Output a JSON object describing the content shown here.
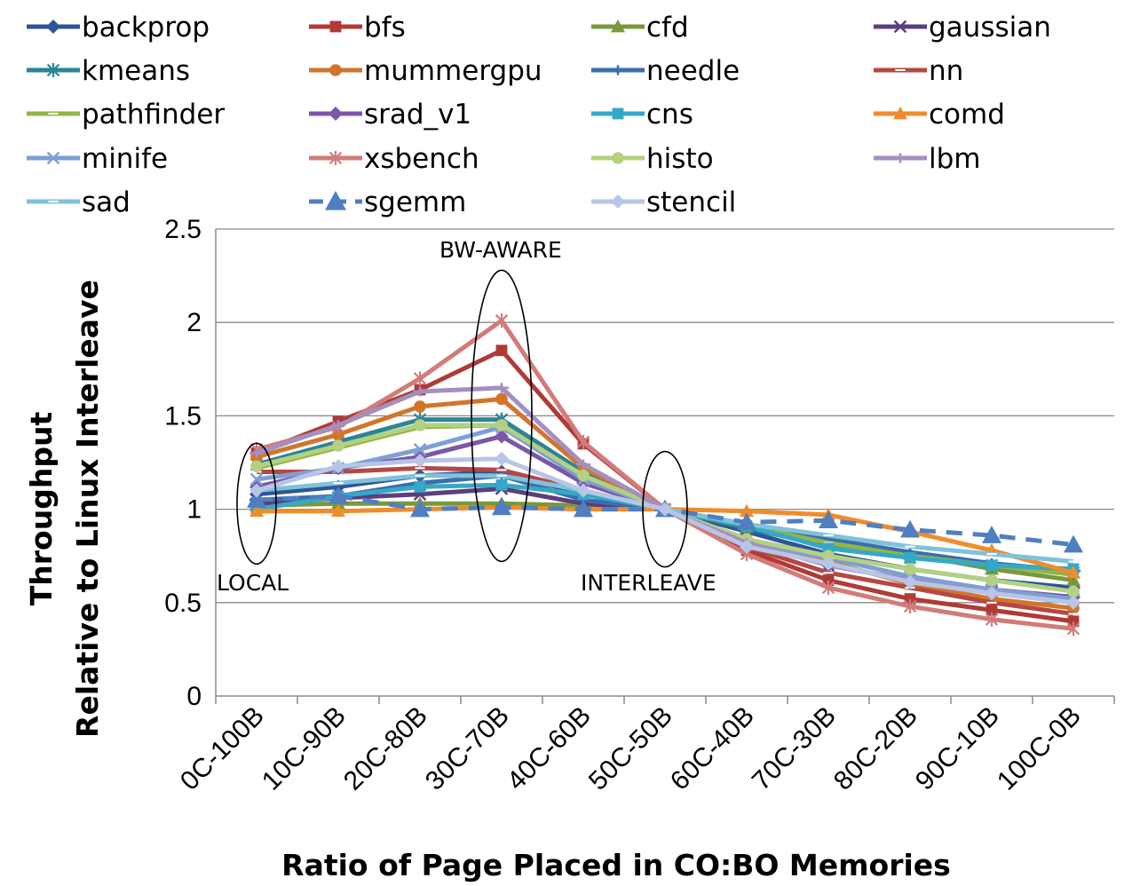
{
  "chart_data": {
    "type": "line",
    "xlabel": "Ratio of Page Placed in CO:BO Memories",
    "ylabel_lines": [
      "Throughput",
      "Relative to Linux Interleave"
    ],
    "ylim": [
      0,
      2.5
    ],
    "yticks": [
      "0",
      "0.5",
      "1",
      "1.5",
      "2",
      "2.5"
    ],
    "grid": "horizontal",
    "legend_position": "top",
    "categories": [
      "0C-100B",
      "10C-90B",
      "20C-80B",
      "30C-70B",
      "40C-60B",
      "50C-50B",
      "60C-40B",
      "70C-30B",
      "80C-20B",
      "90C-10B",
      "100C-0B"
    ],
    "annotations": [
      {
        "text": "LOCAL",
        "category": "0C-100B"
      },
      {
        "text": "BW-AWARE",
        "category": "30C-70B"
      },
      {
        "text": "INTERLEAVE",
        "category": "50C-50B"
      }
    ],
    "series": [
      {
        "name": "backprop",
        "color": "#2e5597",
        "marker": "diamond",
        "dashed": false,
        "values": [
          1.08,
          1.12,
          1.18,
          1.2,
          1.08,
          1.0,
          0.88,
          0.76,
          0.68,
          0.62,
          0.58
        ]
      },
      {
        "name": "bfs",
        "color": "#b03a36",
        "marker": "square",
        "dashed": false,
        "values": [
          1.3,
          1.47,
          1.64,
          1.85,
          1.35,
          1.0,
          0.78,
          0.62,
          0.52,
          0.46,
          0.4
        ]
      },
      {
        "name": "cfd",
        "color": "#78993a",
        "marker": "triangle",
        "dashed": false,
        "values": [
          1.02,
          1.03,
          1.03,
          1.03,
          1.02,
          1.0,
          0.9,
          0.83,
          0.76,
          0.68,
          0.62
        ]
      },
      {
        "name": "gaussian",
        "color": "#5d3d7e",
        "marker": "x",
        "dashed": false,
        "values": [
          1.03,
          1.06,
          1.08,
          1.11,
          1.03,
          1.0,
          0.84,
          0.7,
          0.62,
          0.56,
          0.52
        ]
      },
      {
        "name": "kmeans",
        "color": "#2a8596",
        "marker": "star",
        "dashed": false,
        "values": [
          1.24,
          1.36,
          1.48,
          1.48,
          1.2,
          1.0,
          0.9,
          0.8,
          0.74,
          0.7,
          0.66
        ]
      },
      {
        "name": "mummergpu",
        "color": "#d2752b",
        "marker": "circle",
        "dashed": false,
        "values": [
          1.28,
          1.4,
          1.55,
          1.59,
          1.22,
          1.0,
          0.84,
          0.72,
          0.6,
          0.52,
          0.47
        ]
      },
      {
        "name": "needle",
        "color": "#3a6ead",
        "marker": "plus",
        "dashed": false,
        "values": [
          1.05,
          1.07,
          1.14,
          1.18,
          1.05,
          1.0,
          0.92,
          0.84,
          0.77,
          0.71,
          0.67
        ]
      },
      {
        "name": "nn",
        "color": "#b44843",
        "marker": "dash",
        "dashed": false,
        "values": [
          1.2,
          1.2,
          1.22,
          1.21,
          1.1,
          1.0,
          0.8,
          0.66,
          0.58,
          0.5,
          0.44
        ]
      },
      {
        "name": "pathfinder",
        "color": "#93b545",
        "marker": "dash",
        "dashed": false,
        "values": [
          1.22,
          1.33,
          1.44,
          1.45,
          1.18,
          1.0,
          0.91,
          0.82,
          0.75,
          0.7,
          0.65
        ]
      },
      {
        "name": "srad_v1",
        "color": "#7b58a6",
        "marker": "diamond",
        "dashed": false,
        "values": [
          1.12,
          1.22,
          1.28,
          1.39,
          1.14,
          1.0,
          0.82,
          0.7,
          0.62,
          0.57,
          0.53
        ]
      },
      {
        "name": "cns",
        "color": "#35a8c7",
        "marker": "square",
        "dashed": false,
        "values": [
          1.0,
          1.07,
          1.12,
          1.13,
          1.08,
          1.0,
          0.91,
          0.79,
          0.74,
          0.7,
          0.68
        ]
      },
      {
        "name": "comd",
        "color": "#f08c2b",
        "marker": "triangle",
        "dashed": false,
        "values": [
          0.99,
          0.99,
          1.0,
          1.01,
          1.0,
          1.0,
          0.99,
          0.97,
          0.88,
          0.78,
          0.66
        ]
      },
      {
        "name": "minife",
        "color": "#7e9fd4",
        "marker": "x",
        "dashed": false,
        "values": [
          1.16,
          1.22,
          1.32,
          1.44,
          1.16,
          1.0,
          0.82,
          0.74,
          0.64,
          0.57,
          0.52
        ]
      },
      {
        "name": "xsbench",
        "color": "#d17c79",
        "marker": "star",
        "dashed": false,
        "values": [
          1.32,
          1.44,
          1.7,
          2.01,
          1.36,
          1.0,
          0.76,
          0.58,
          0.48,
          0.41,
          0.36
        ]
      },
      {
        "name": "histo",
        "color": "#b3d180",
        "marker": "circle",
        "dashed": false,
        "values": [
          1.23,
          1.34,
          1.45,
          1.45,
          1.18,
          1.0,
          0.84,
          0.75,
          0.68,
          0.62,
          0.56
        ]
      },
      {
        "name": "lbm",
        "color": "#a38fc0",
        "marker": "plus",
        "dashed": false,
        "values": [
          1.3,
          1.45,
          1.63,
          1.65,
          1.24,
          1.0,
          0.82,
          0.7,
          0.62,
          0.55,
          0.5
        ]
      },
      {
        "name": "sad",
        "color": "#7fc2da",
        "marker": "dash",
        "dashed": false,
        "values": [
          1.1,
          1.14,
          1.18,
          1.18,
          1.1,
          1.0,
          0.92,
          0.86,
          0.8,
          0.76,
          0.72
        ]
      },
      {
        "name": "sgemm",
        "color": "#4f7fc1",
        "marker": "triangle",
        "dashed": true,
        "values": [
          1.05,
          1.07,
          1.0,
          1.01,
          1.0,
          1.0,
          0.93,
          0.94,
          0.89,
          0.86,
          0.81
        ]
      },
      {
        "name": "stencil",
        "color": "#b7c6e6",
        "marker": "diamond",
        "dashed": false,
        "values": [
          1.1,
          1.23,
          1.26,
          1.27,
          1.1,
          1.0,
          0.8,
          0.71,
          0.61,
          0.55,
          0.5
        ]
      }
    ]
  }
}
